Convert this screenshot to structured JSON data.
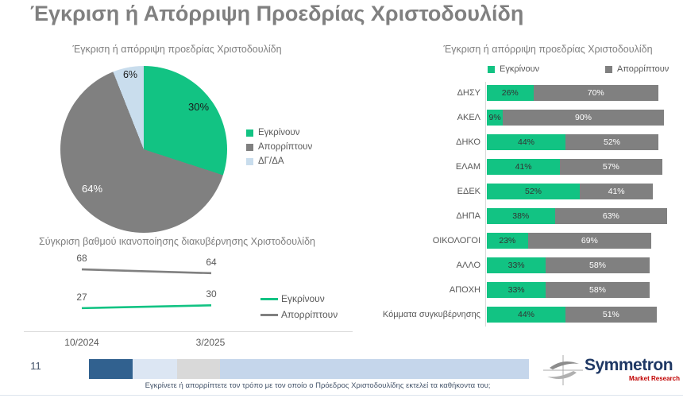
{
  "header": {
    "title": "Έγκριση ή Απόρριψη Προεδρίας Χριστοδουλίδη"
  },
  "colors": {
    "approve_green": "#12c383",
    "reject_gray": "#808080",
    "dk_da_lightblue": "#c9dded"
  },
  "chart_data": [
    {
      "type": "pie",
      "title": "Έγκριση ή απόρριψη προεδρίας Χριστοδουλίδη",
      "labels": [
        "Εγκρίνουν",
        "Απορρίπτουν",
        "ΔΓ/ΔΑ"
      ],
      "values": [
        30,
        64,
        6
      ],
      "value_labels": [
        "30%",
        "64%",
        "6%"
      ],
      "colors": [
        "#12c383",
        "#808080",
        "#c9dded"
      ],
      "start_angle_deg": 0,
      "direction": "clockwise",
      "legend_position": "right"
    },
    {
      "type": "line",
      "title": "Σύγκριση βαθμού ικανοποίησης διακυβέρνησης Χριστοδουλίδη",
      "x": [
        "10/2024",
        "3/2025"
      ],
      "series": [
        {
          "name": "Εγκρίνουν",
          "values": [
            27,
            30
          ],
          "color": "#12c383"
        },
        {
          "name": "Απορρίπτουν",
          "values": [
            68,
            64
          ],
          "color": "#808080"
        }
      ],
      "ylim": [
        0,
        100
      ],
      "grid": false,
      "legend_position": "right"
    },
    {
      "type": "bar",
      "orientation": "horizontal_stacked",
      "title": "Έγκριση ή απόρριψη προεδρίας Χριστοδουλίδη",
      "categories": [
        "ΔΗΣΥ",
        "ΑΚΕΛ",
        "ΔΗΚΟ",
        "ΕΛΑΜ",
        "ΕΔΕΚ",
        "ΔΗΠΑ",
        "ΟΙΚΟΛΟΓΟΙ",
        "ΑΛΛΟ",
        "ΑΠΟΧΗ",
        "Κόμματα συγκυβέρνησης"
      ],
      "series": [
        {
          "name": "Εγκρίνουν",
          "color": "#12c383",
          "values": [
            26,
            9,
            44,
            41,
            52,
            38,
            23,
            33,
            33,
            44
          ],
          "value_labels": [
            "26%",
            "9%",
            "44%",
            "41%",
            "52%",
            "38%",
            "23%",
            "33%",
            "33%",
            "44%"
          ]
        },
        {
          "name": "Απορρίπτουν",
          "color": "#808080",
          "values": [
            70,
            90,
            52,
            57,
            41,
            63,
            69,
            58,
            58,
            51
          ],
          "value_labels": [
            "70%",
            "90%",
            "52%",
            "57%",
            "41%",
            "63%",
            "69%",
            "58%",
            "58%",
            "51%"
          ]
        }
      ],
      "xlim": [
        0,
        100
      ],
      "legend_position": "top"
    }
  ],
  "footer": {
    "page_number": "11",
    "question": "Εγκρίνετε ή απορρίπτετε τον τρόπο με τον οποίο ο Πρόεδρος Χριστοδουλίδης εκτελεί τα καθήκοντα του;",
    "progress_segments": [
      {
        "color": "#31618f"
      },
      {
        "color": "#dce6f3"
      },
      {
        "color": "#d9d9d9"
      },
      {
        "color": "#c5d6eb"
      }
    ],
    "logo": {
      "name": "Symmetron",
      "tagline": "Market Research",
      "name_color": "#1f3864",
      "tagline_color": "#c00000"
    }
  }
}
